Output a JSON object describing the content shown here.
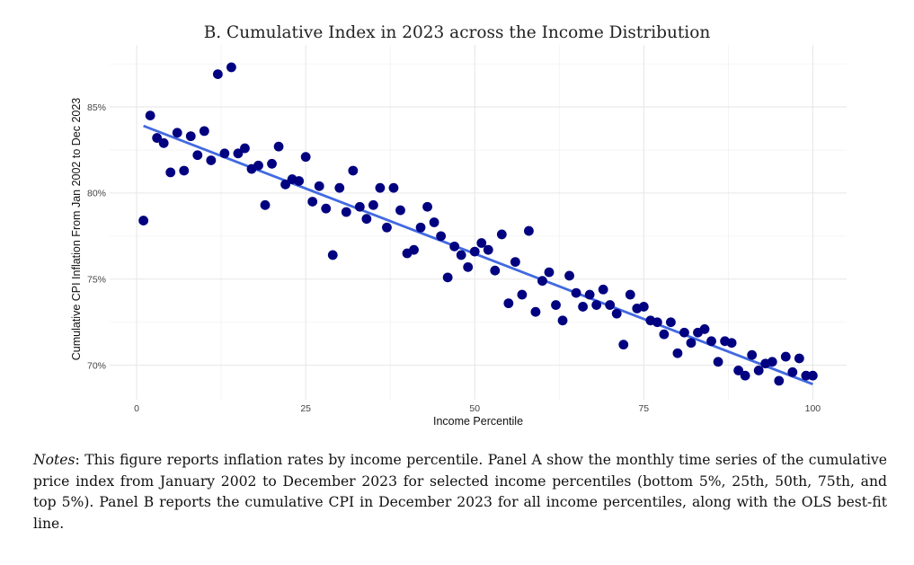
{
  "chart_data": {
    "type": "scatter",
    "title": "B. Cumulative Index in 2023 across the Income Distribution",
    "xlabel": "Income Percentile",
    "ylabel": "Cumulative CPI Inflation From Jan 2002 to Dec 2023",
    "xlim": [
      -4,
      105
    ],
    "ylim": [
      68.0,
      88.6
    ],
    "x_ticks": [
      0,
      25,
      50,
      75,
      100
    ],
    "x_tick_labels": [
      "0",
      "25",
      "50",
      "75",
      "100"
    ],
    "y_ticks": [
      70,
      75,
      80,
      85
    ],
    "y_tick_labels": [
      "70%",
      "75%",
      "80%",
      "85%"
    ],
    "grid": true,
    "legend": "none",
    "point_color": "#000080",
    "line_color": "#4169E1",
    "points": [
      [
        1,
        78.4
      ],
      [
        2,
        84.5
      ],
      [
        3,
        83.2
      ],
      [
        4,
        82.9
      ],
      [
        5,
        81.2
      ],
      [
        6,
        83.5
      ],
      [
        7,
        81.3
      ],
      [
        8,
        83.3
      ],
      [
        9,
        82.2
      ],
      [
        10,
        83.6
      ],
      [
        11,
        81.9
      ],
      [
        12,
        86.9
      ],
      [
        13,
        82.3
      ],
      [
        14,
        87.3
      ],
      [
        15,
        82.3
      ],
      [
        16,
        82.6
      ],
      [
        17,
        81.4
      ],
      [
        18,
        81.6
      ],
      [
        19,
        79.3
      ],
      [
        20,
        81.7
      ],
      [
        21,
        82.7
      ],
      [
        22,
        80.5
      ],
      [
        23,
        80.8
      ],
      [
        24,
        80.7
      ],
      [
        25,
        82.1
      ],
      [
        26,
        79.5
      ],
      [
        27,
        80.4
      ],
      [
        28,
        79.1
      ],
      [
        29,
        76.4
      ],
      [
        30,
        80.3
      ],
      [
        31,
        78.9
      ],
      [
        32,
        81.3
      ],
      [
        33,
        79.2
      ],
      [
        34,
        78.5
      ],
      [
        35,
        79.3
      ],
      [
        36,
        80.3
      ],
      [
        37,
        78.0
      ],
      [
        38,
        80.3
      ],
      [
        39,
        79.0
      ],
      [
        40,
        76.5
      ],
      [
        41,
        76.7
      ],
      [
        42,
        78.0
      ],
      [
        43,
        79.2
      ],
      [
        44,
        78.3
      ],
      [
        45,
        77.5
      ],
      [
        46,
        75.1
      ],
      [
        47,
        76.9
      ],
      [
        48,
        76.4
      ],
      [
        49,
        75.7
      ],
      [
        50,
        76.6
      ],
      [
        51,
        77.1
      ],
      [
        52,
        76.7
      ],
      [
        53,
        75.5
      ],
      [
        54,
        77.6
      ],
      [
        55,
        73.6
      ],
      [
        56,
        76.0
      ],
      [
        57,
        74.1
      ],
      [
        58,
        77.8
      ],
      [
        59,
        73.1
      ],
      [
        60,
        74.9
      ],
      [
        61,
        75.4
      ],
      [
        62,
        73.5
      ],
      [
        63,
        72.6
      ],
      [
        64,
        75.2
      ],
      [
        65,
        74.2
      ],
      [
        66,
        73.4
      ],
      [
        67,
        74.1
      ],
      [
        68,
        73.5
      ],
      [
        69,
        74.4
      ],
      [
        70,
        73.5
      ],
      [
        71,
        73.0
      ],
      [
        72,
        71.2
      ],
      [
        73,
        74.1
      ],
      [
        74,
        73.3
      ],
      [
        75,
        73.4
      ],
      [
        76,
        72.6
      ],
      [
        77,
        72.5
      ],
      [
        78,
        71.8
      ],
      [
        79,
        72.5
      ],
      [
        80,
        70.7
      ],
      [
        81,
        71.9
      ],
      [
        82,
        71.3
      ],
      [
        83,
        71.9
      ],
      [
        84,
        72.1
      ],
      [
        85,
        71.4
      ],
      [
        86,
        70.2
      ],
      [
        87,
        71.4
      ],
      [
        88,
        71.3
      ],
      [
        89,
        69.7
      ],
      [
        90,
        69.4
      ],
      [
        91,
        70.6
      ],
      [
        92,
        69.7
      ],
      [
        93,
        70.1
      ],
      [
        94,
        70.2
      ],
      [
        95,
        69.1
      ],
      [
        96,
        70.5
      ],
      [
        97,
        69.6
      ],
      [
        98,
        70.4
      ],
      [
        99,
        69.4
      ],
      [
        100,
        69.4
      ]
    ],
    "fit_line": {
      "label": "OLS best-fit line",
      "x": [
        1,
        100
      ],
      "y": [
        83.9,
        68.9
      ]
    }
  },
  "notes": {
    "label": "Notes",
    "text": ": This figure reports inflation rates by income percentile. Panel A show the monthly time series of the cumulative price index from January 2002 to December 2023 for selected income percentiles (bottom 5%, 25th, 50th, 75th, and top 5%). Panel B reports the cumulative CPI in December 2023 for all income percentiles, along with the OLS best-fit line."
  }
}
